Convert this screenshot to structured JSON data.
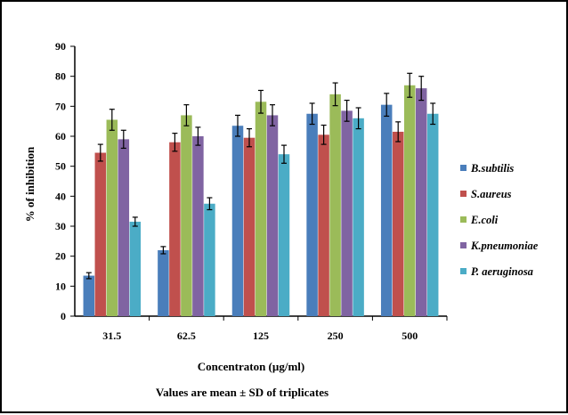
{
  "chart_data": {
    "type": "bar",
    "categories": [
      "31.5",
      "62.5",
      "125",
      "250",
      "500"
    ],
    "series": [
      {
        "name": "B.subtilis",
        "color": "#4a7ebb",
        "values": [
          13.5,
          22,
          63.5,
          67.5,
          70.5
        ],
        "errors": [
          1,
          1.2,
          3.5,
          3.5,
          3.8
        ]
      },
      {
        "name": "S.aureus",
        "color": "#c0504d",
        "values": [
          54.5,
          58,
          59.5,
          60.5,
          61.5
        ],
        "errors": [
          2.8,
          3,
          3,
          3.2,
          3.3
        ]
      },
      {
        "name": "E.coli",
        "color": "#9bbb59",
        "values": [
          65.5,
          67,
          71.5,
          74,
          77
        ],
        "errors": [
          3.5,
          3.5,
          3.8,
          3.8,
          4
        ]
      },
      {
        "name": "K.pneumoniae",
        "color": "#8064a2",
        "values": [
          59,
          60,
          67,
          68.5,
          76
        ],
        "errors": [
          3,
          3,
          3.5,
          3.5,
          4
        ]
      },
      {
        "name": "P. aeruginosa",
        "color": "#4bacc6",
        "values": [
          31.5,
          37.5,
          54,
          66,
          67.5
        ],
        "errors": [
          1.5,
          2,
          3,
          3.5,
          3.5
        ]
      }
    ],
    "xlabel": "Concentraton (µg/ml)",
    "ylabel": "% of inhibition",
    "ylim": [
      0,
      90
    ],
    "yticks": [
      0,
      10,
      20,
      30,
      40,
      50,
      60,
      70,
      80,
      90
    ],
    "note": "Values are mean ± SD of triplicates",
    "legend_position": "right",
    "grid": false
  }
}
